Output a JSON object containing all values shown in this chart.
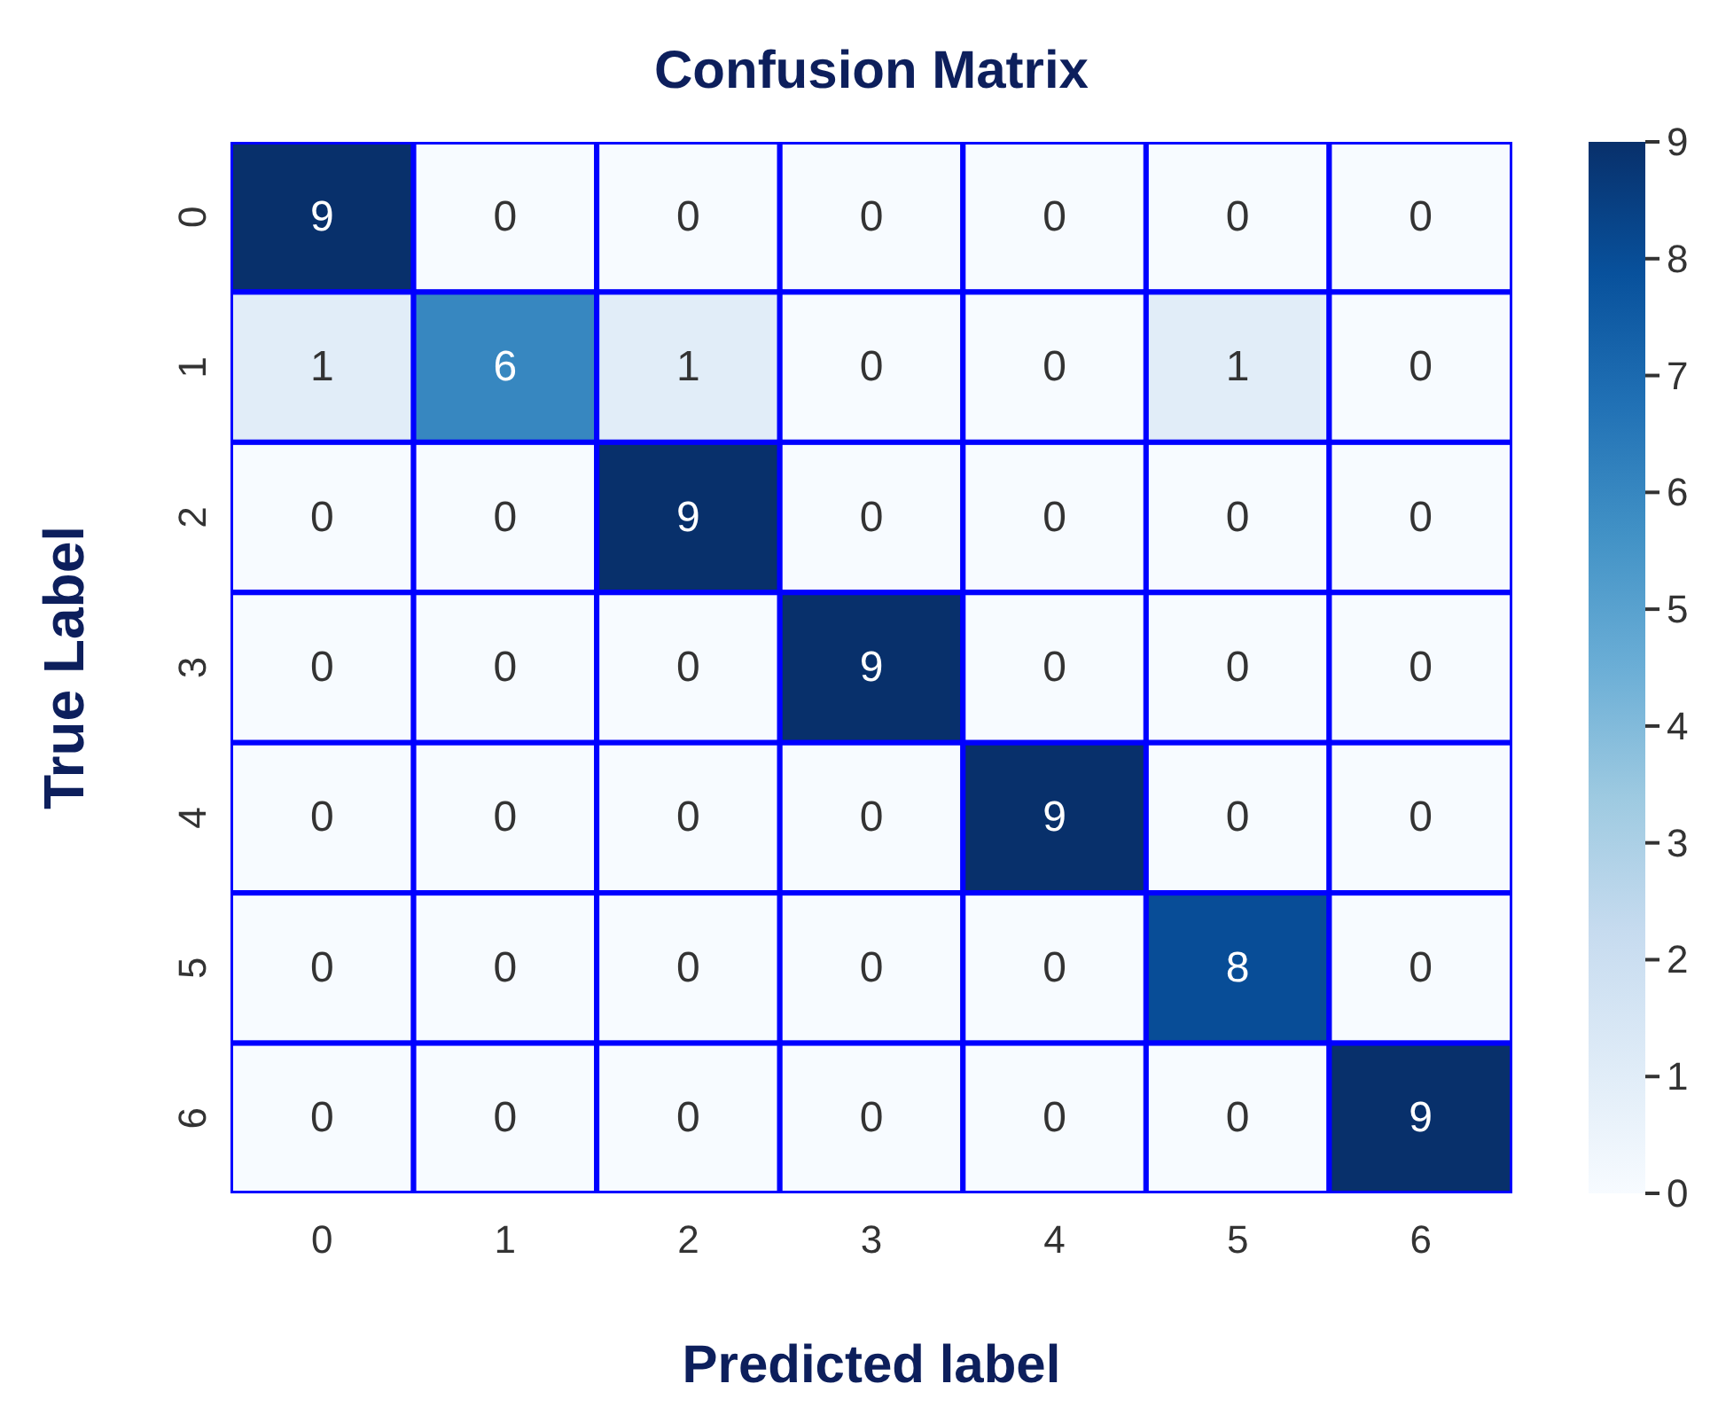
{
  "chart_data": {
    "type": "heatmap",
    "title": "Confusion Matrix",
    "xlabel": "Predicted label",
    "ylabel": "True Label",
    "categories": [
      "0",
      "1",
      "2",
      "3",
      "4",
      "5",
      "6"
    ],
    "y_categories": [
      "0",
      "1",
      "2",
      "3",
      "4",
      "5",
      "6"
    ],
    "cells": [
      [
        9,
        0,
        0,
        0,
        0,
        0,
        0
      ],
      [
        1,
        6,
        1,
        0,
        0,
        1,
        0
      ],
      [
        0,
        0,
        9,
        0,
        0,
        0,
        0
      ],
      [
        0,
        0,
        0,
        9,
        0,
        0,
        0
      ],
      [
        0,
        0,
        0,
        0,
        9,
        0,
        0
      ],
      [
        0,
        0,
        0,
        0,
        0,
        8,
        0
      ],
      [
        0,
        0,
        0,
        0,
        0,
        0,
        9
      ]
    ],
    "clim": [
      0,
      9
    ],
    "cticks": [
      0,
      1,
      2,
      3,
      4,
      5,
      6,
      7,
      8,
      9
    ],
    "data_labels": true
  }
}
